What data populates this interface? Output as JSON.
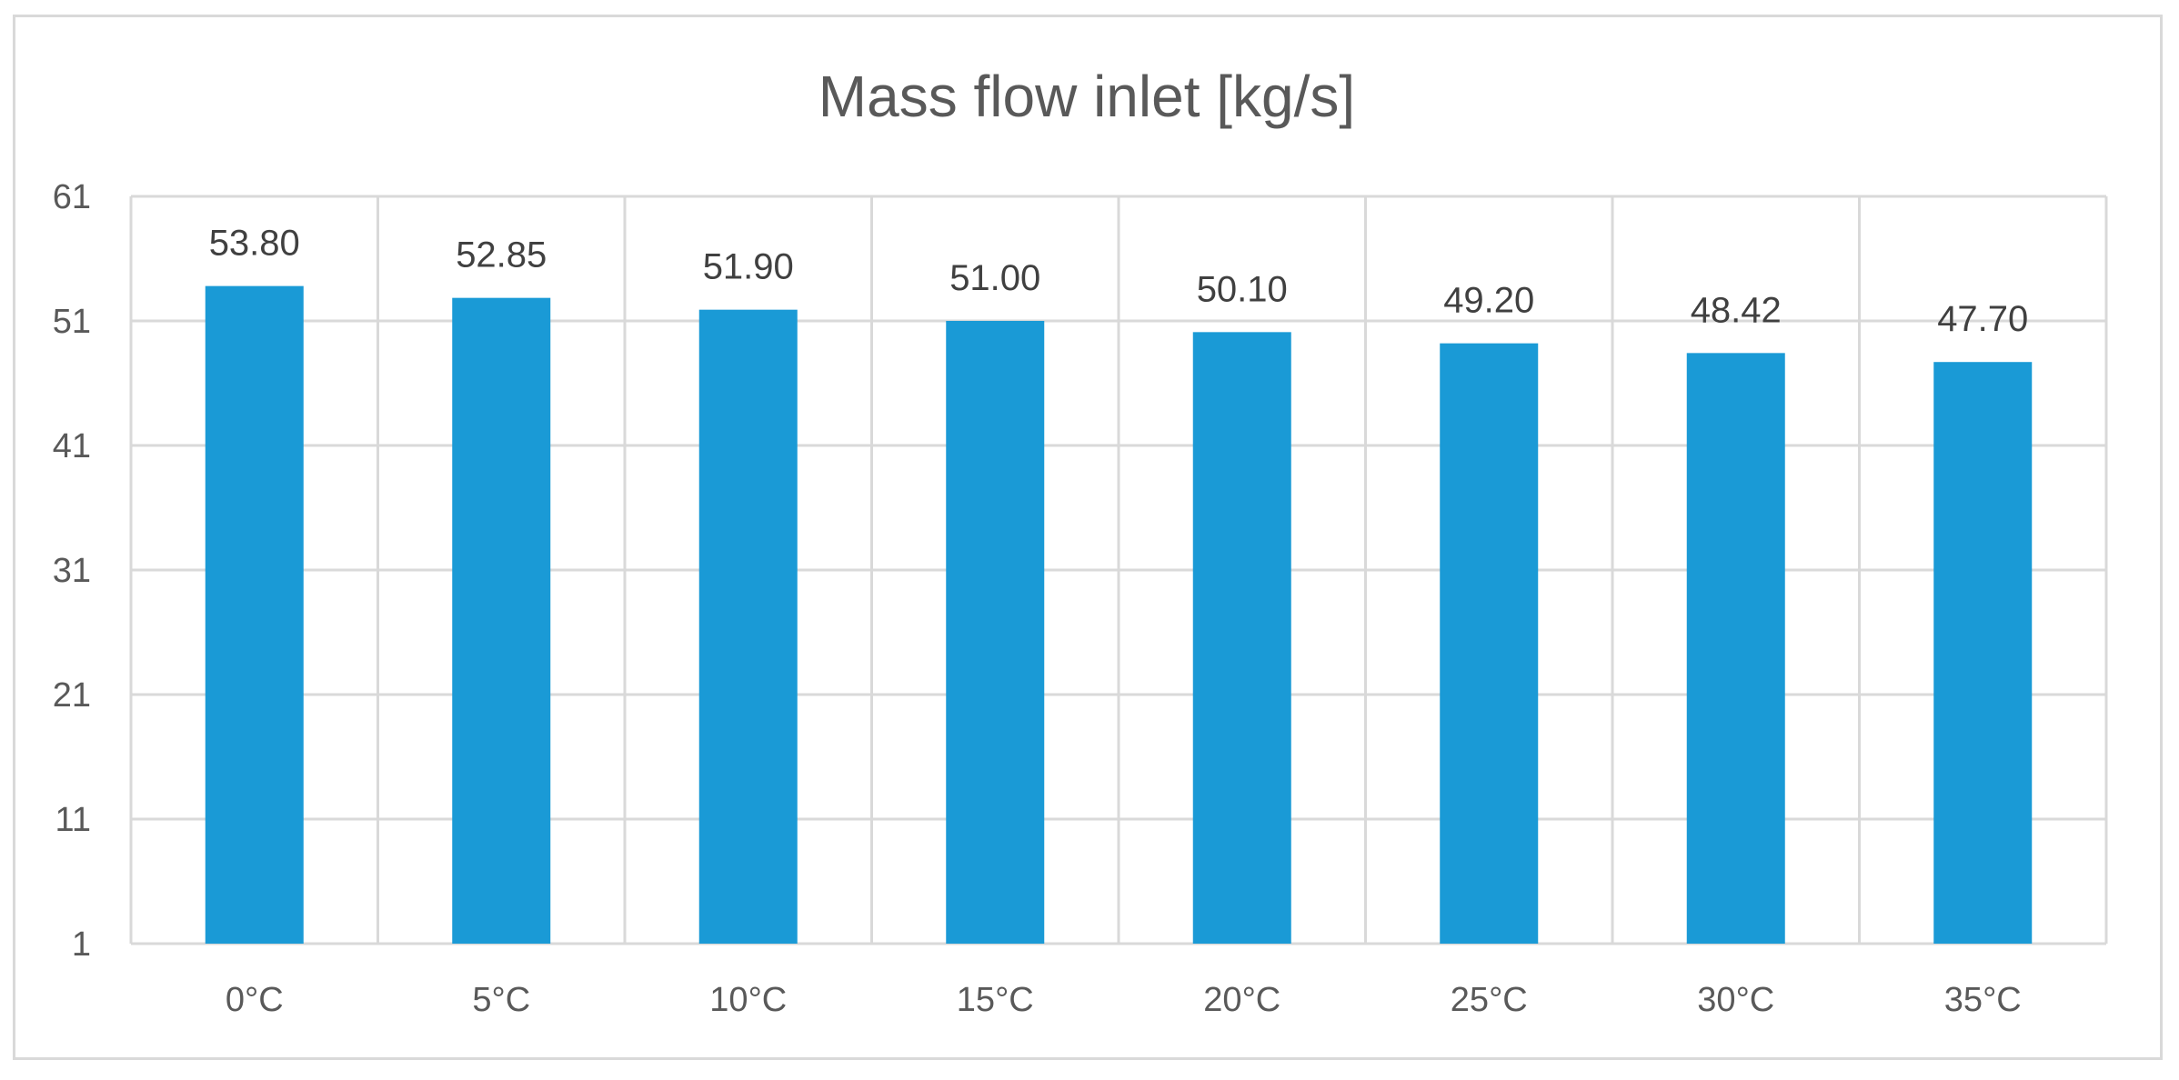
{
  "chart_data": {
    "type": "bar",
    "title": "Mass flow inlet [kg/s]",
    "xlabel": "",
    "ylabel": "",
    "categories": [
      "0°C",
      "5°C",
      "10°C",
      "15°C",
      "20°C",
      "25°C",
      "30°C",
      "35°C"
    ],
    "values": [
      53.8,
      52.85,
      51.9,
      51.0,
      50.1,
      49.2,
      48.42,
      47.7
    ],
    "value_labels": [
      "53.80",
      "52.85",
      "51.90",
      "51.00",
      "50.10",
      "49.20",
      "48.42",
      "47.70"
    ],
    "ylim": [
      1,
      61
    ],
    "yticks": [
      1,
      11,
      21,
      31,
      41,
      51,
      61
    ],
    "grid": true,
    "bar_color": "#1a9ad6",
    "legend": "none"
  }
}
